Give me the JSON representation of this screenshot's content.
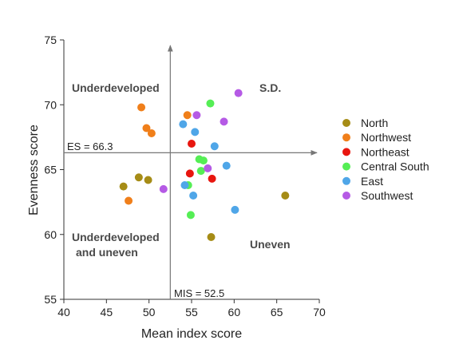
{
  "chart_data": {
    "type": "scatter",
    "xlabel": "Mean index score",
    "ylabel": "Evenness score",
    "xlim": [
      40,
      70
    ],
    "ylim": [
      55,
      75
    ],
    "xticks": [
      40,
      45,
      50,
      55,
      60,
      65,
      70
    ],
    "yticks": [
      55,
      60,
      65,
      70,
      75
    ],
    "grid": false,
    "legend_position": "right",
    "reference_lines": {
      "x": {
        "value": 52.5,
        "label": "MIS = 52.5"
      },
      "y": {
        "value": 66.3,
        "label": "ES = 66.3"
      }
    },
    "quadrant_labels": {
      "top_left": "Underdeveloped",
      "top_right": "S.D.",
      "bottom_left_line1": "Underdeveloped",
      "bottom_left_line2": "and uneven",
      "bottom_right": "Uneven"
    },
    "series": [
      {
        "name": "North",
        "color": "#a68c16",
        "points": [
          [
            47.0,
            63.7
          ],
          [
            48.8,
            64.4
          ],
          [
            49.9,
            64.2
          ],
          [
            57.3,
            59.8
          ],
          [
            66.0,
            63.0
          ]
        ]
      },
      {
        "name": "Northwest",
        "color": "#f07f1a",
        "points": [
          [
            47.6,
            62.6
          ],
          [
            49.1,
            69.8
          ],
          [
            49.7,
            68.2
          ],
          [
            50.3,
            67.8
          ],
          [
            54.5,
            69.2
          ]
        ]
      },
      {
        "name": "Northeast",
        "color": "#e8160f",
        "points": [
          [
            54.8,
            64.7
          ],
          [
            55.0,
            67.0
          ],
          [
            57.4,
            64.3
          ]
        ]
      },
      {
        "name": "Central South",
        "color": "#55ee55",
        "points": [
          [
            54.6,
            63.8
          ],
          [
            54.9,
            61.5
          ],
          [
            55.9,
            65.8
          ],
          [
            56.1,
            64.9
          ],
          [
            56.4,
            65.7
          ],
          [
            57.2,
            70.1
          ]
        ]
      },
      {
        "name": "East",
        "color": "#4fa6e8",
        "points": [
          [
            54.0,
            68.5
          ],
          [
            54.2,
            63.8
          ],
          [
            55.2,
            63.0
          ],
          [
            55.4,
            67.9
          ],
          [
            57.7,
            66.8
          ],
          [
            59.1,
            65.3
          ],
          [
            60.1,
            61.9
          ]
        ]
      },
      {
        "name": "Southwest",
        "color": "#b55ae5",
        "points": [
          [
            51.7,
            63.5
          ],
          [
            55.6,
            69.2
          ],
          [
            56.9,
            65.1
          ],
          [
            58.8,
            68.7
          ],
          [
            60.5,
            70.9
          ]
        ]
      }
    ]
  }
}
